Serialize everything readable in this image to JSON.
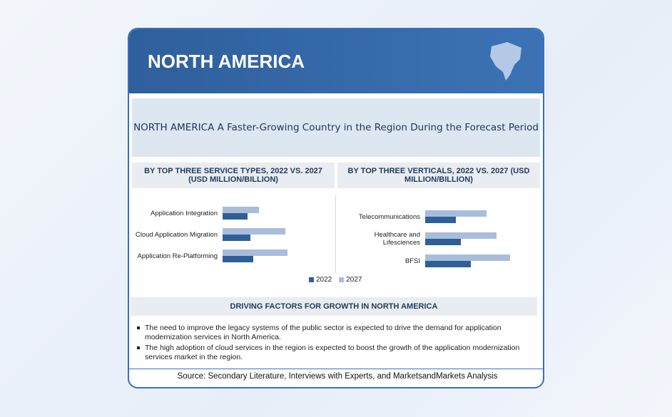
{
  "header": {
    "title": "NORTH AMERICA"
  },
  "subtitle": "NORTH AMERICA A Faster-Growing Country in the Region During the Forecast Period",
  "chart_data": [
    {
      "type": "bar",
      "title": "BY TOP THREE SERVICE TYPES, 2022 VS. 2027 (USD MILLION/BILLION)",
      "categories": [
        "Application Integration",
        "Cloud Application Migration",
        "Application Re-Platforming"
      ],
      "series": [
        {
          "name": "2022",
          "color": "#2e5f98",
          "values": [
            35,
            39,
            43
          ]
        },
        {
          "name": "2027",
          "color": "#a9bddb",
          "values": [
            51,
            88,
            91
          ]
        }
      ]
    },
    {
      "type": "bar",
      "title": "BY TOP THREE VERTICALS, 2022 VS. 2027 (USD MILLION/BILLION)",
      "categories": [
        "Telecommunications",
        "Healthcare and Lifesciences",
        "BFSI"
      ],
      "series": [
        {
          "color": "#2e5f98",
          "values": [
            43,
            50,
            64
          ]
        },
        {
          "color": "#a9bddb",
          "values": [
            86,
            100,
            119
          ]
        }
      ]
    }
  ],
  "factors": {
    "title": "DRIVING FACTORS FOR GROWTH IN NORTH AMERICA",
    "items": [
      "The need to improve the legacy systems of the public sector is expected to drive the demand for application modernization services in North America.",
      "The high adoption of cloud services in the region is expected to boost the growth of the application modernization services market in the region."
    ]
  },
  "source": "Source: Secondary Literature, Interviews with Experts, and MarketsandMarkets Analysis"
}
